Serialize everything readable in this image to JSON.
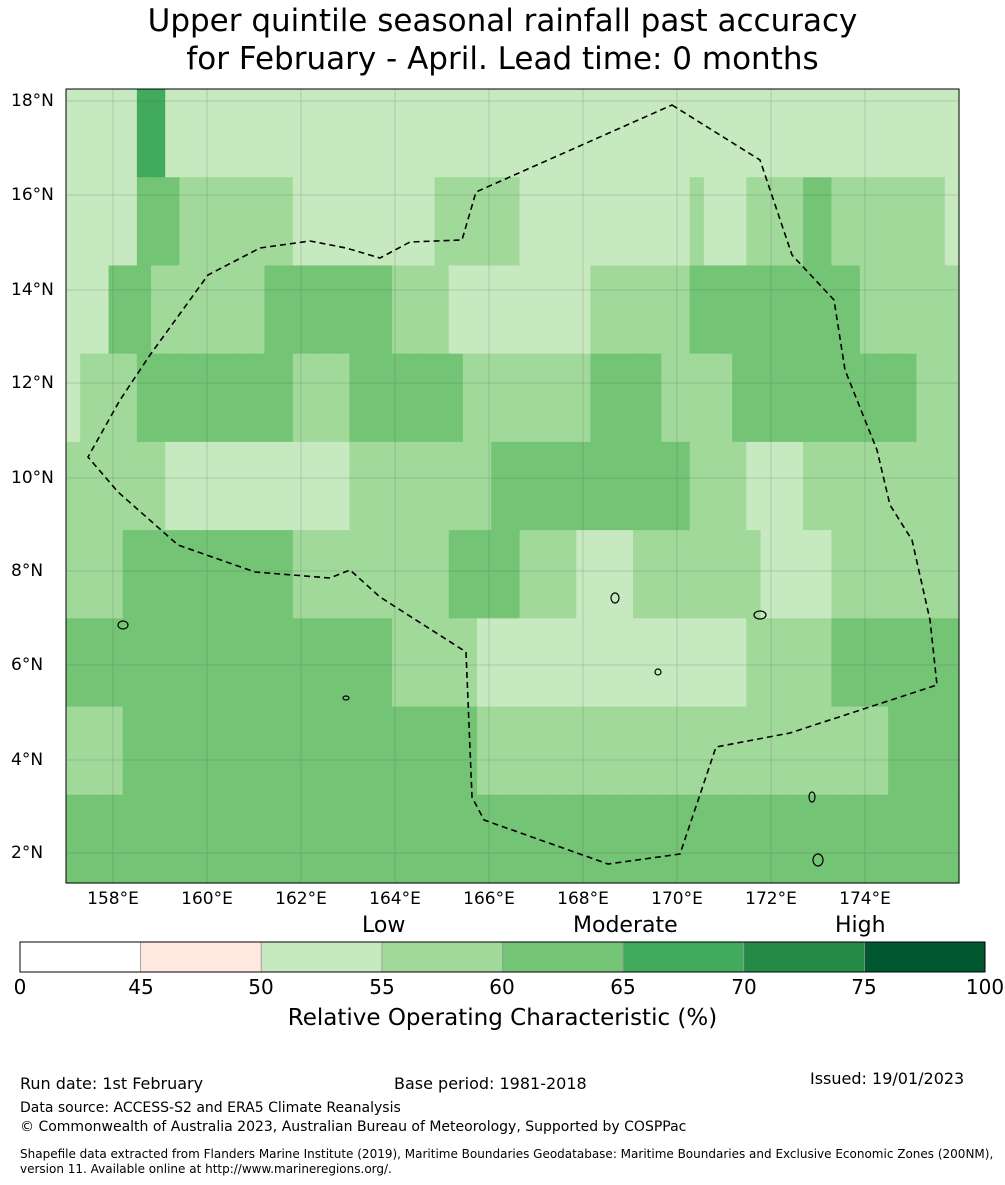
{
  "title": {
    "line1": "Upper quintile seasonal rainfall past accuracy",
    "line2": "for February - April. Lead time: 0 months"
  },
  "map": {
    "lat_labels": [
      "18°N",
      "16°N",
      "14°N",
      "12°N",
      "10°N",
      "8°N",
      "6°N",
      "4°N",
      "2°N"
    ],
    "lon_labels": [
      "158°E",
      "160°E",
      "162°E",
      "164°E",
      "166°E",
      "168°E",
      "170°E",
      "172°E",
      "174°E"
    ],
    "lat_range": [
      1.5,
      18.4
    ],
    "lon_range": [
      157.0,
      176.0
    ],
    "grid_cells": [
      "CCCCCFFCCCCCCCCCCCCCCCCCCCCCCCCCCCCCCCCCCCCCCCCCCCCCCCCCCCCCCCC",
      "CCCCCEEEDDDDDDDDCCCCCCCCCCDDDDDDCCCCCCCCCCCCDCCCDDDDEEDDDDDDDDC",
      "CCCEEEDDDDDDDDEEEEEEEEEDDDDCCCCCCCCCCDDDDDDDEEEEEEEEEEEEDDDDDDD",
      "CDDDDEEEEEEEEEEEDDDDEEEEEEEEDDDDDDDDDEEEEEDDDDDEEEEEEEEEEEEEDDD",
      "DDDDDDDCCCCCCCCCCCCCDDDDDDDDDDEEEEEEEEEEEEEEDDDDCCCCDDDDDDDDDDD",
      "DDDDEEEEEEEEEEEEDDDDDDDDDDDEEEEEDDDDCCCCDDDDDDDDDCCCCCDDDDDDDDD",
      "EEEEEEEEEEEEEEEEEEEEEEEDDDDDDCCCCCCCCCCCCCCCCCCCDDDDDDEEEEEEEEE",
      "DDDDEEEEEEEEEEEEEEEEEEEEEEEEEDDDDDDDDDDDDDDDDDDDDDDDDDDDDDEEEEE",
      "EEEEEEEEEEEEEEEEEEEEEEEEEEEEEEEEEEEEEEEEEEEEEEEEEEEEEEEEEEEEEEE"
    ]
  },
  "legend": {
    "categories": [
      "Low",
      "Moderate",
      "High"
    ],
    "ticks": [
      "0",
      "45",
      "50",
      "55",
      "60",
      "65",
      "70",
      "75",
      "100"
    ],
    "colors": [
      "#ffffff",
      "#fee8e0",
      "#c7e9c0",
      "#a1d99b",
      "#74c476",
      "#41ab5d",
      "#238b45",
      "#00582f"
    ],
    "label": "Relative Operating Characteristic (%)"
  },
  "footer": {
    "run_date": "Run date: 1st February",
    "base_period": "Base period: 1981-2018",
    "issued": "Issued: 19/01/2023",
    "data_source": "Data source: ACCESS-S2 and ERA5 Climate Reanalysis",
    "copyright": "© Commonwealth of Australia 2023, Australian Bureau of Meteorology, Supported by COSPPac",
    "shapefile_line1": "Shapefile data extracted from Flanders Marine Institute (2019), Maritime Boundaries Geodatabase: Maritime Boundaries and Exclusive Economic Zones (200NM),",
    "shapefile_line2": "version 11. Available online at http://www.marineregions.org/."
  }
}
